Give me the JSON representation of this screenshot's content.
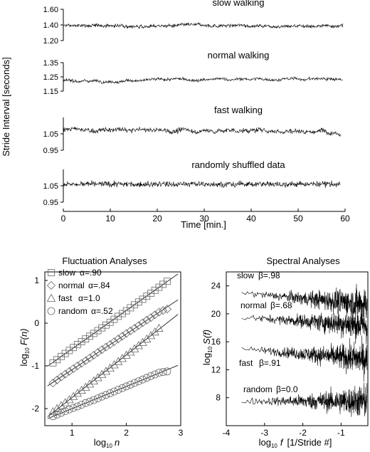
{
  "chart_data": [
    {
      "type": "line",
      "ylabel": "Stride Interval  [seconds]",
      "xlabel": "Time  [min.]",
      "x_ticks": [
        0,
        10,
        20,
        30,
        40,
        50,
        60
      ],
      "xlim": [
        0,
        60
      ],
      "grid": false,
      "panels": [
        {
          "name": "slow walking",
          "mean": 1.39,
          "ylim": [
            1.2,
            1.6
          ],
          "yticks": [
            1.2,
            1.4,
            1.6
          ],
          "ytick_labels": [
            "1.20",
            "1.40",
            "1.60"
          ],
          "x_end": 59.5
        },
        {
          "name": "normal walking",
          "mean": 1.23,
          "ylim": [
            1.15,
            1.35
          ],
          "yticks": [
            1.15,
            1.25,
            1.35
          ],
          "ytick_labels": [
            "1.15",
            "1.25",
            "1.35"
          ],
          "x_end": 59.5
        },
        {
          "name": "fast walking",
          "mean": 1.07,
          "ylim": [
            0.95,
            1.15
          ],
          "yticks": [
            0.95,
            1.05
          ],
          "ytick_labels": [
            "0.95",
            "1.05"
          ],
          "x_end": 59.0
        },
        {
          "name": "randomly shuffled data",
          "mean": 1.06,
          "ylim": [
            0.95,
            1.15
          ],
          "yticks": [
            0.95,
            1.05
          ],
          "ytick_labels": [
            "0.95",
            "1.05"
          ],
          "x_end": 59.0
        }
      ]
    },
    {
      "type": "scatter",
      "title": "Fluctuation Analyses",
      "xlabel_base": "log",
      "xlabel_sub": "10",
      "xlabel_var": "n",
      "ylabel_base": "log",
      "ylabel_sub": "10",
      "ylabel_var": "F(n)",
      "xlim": [
        0.5,
        3.0
      ],
      "ylim": [
        -2.4,
        1.2
      ],
      "x_ticks": [
        1,
        2,
        3
      ],
      "y_ticks": [
        -2,
        -1,
        0,
        1
      ],
      "series": [
        {
          "name": "slow",
          "label": "α=.90",
          "marker": "square",
          "slope": 0.9,
          "x": [
            0.65,
            0.8,
            0.95,
            1.1,
            1.25,
            1.4,
            1.55,
            1.7,
            1.85,
            2.0,
            2.15,
            2.3,
            2.45,
            2.6,
            2.75
          ],
          "y": [
            -0.93,
            -0.78,
            -0.64,
            -0.5,
            -0.37,
            -0.24,
            -0.11,
            0.02,
            0.16,
            0.29,
            0.43,
            0.56,
            0.7,
            0.84,
            0.98
          ]
        },
        {
          "name": "normal",
          "label": "α=.84",
          "marker": "diamond",
          "slope": 0.84,
          "x": [
            0.65,
            0.8,
            0.95,
            1.1,
            1.25,
            1.4,
            1.55,
            1.7,
            1.85,
            2.0,
            2.15,
            2.3,
            2.45,
            2.6,
            2.75
          ],
          "y": [
            -1.4,
            -1.26,
            -1.13,
            -1.0,
            -0.88,
            -0.75,
            -0.62,
            -0.5,
            -0.37,
            -0.24,
            -0.12,
            0.01,
            0.13,
            0.26,
            0.33
          ]
        },
        {
          "name": "fast",
          "label": "α=1.0",
          "marker": "triangle",
          "slope": 1.0,
          "x": [
            0.65,
            0.8,
            0.95,
            1.1,
            1.25,
            1.4,
            1.55,
            1.7,
            1.85,
            2.0,
            2.15,
            2.3,
            2.45,
            2.6
          ],
          "y": [
            -2.07,
            -1.93,
            -1.79,
            -1.64,
            -1.5,
            -1.35,
            -1.2,
            -1.05,
            -0.9,
            -0.75,
            -0.6,
            -0.45,
            -0.29,
            -0.12
          ]
        },
        {
          "name": "random",
          "label": "α=.52",
          "marker": "circle",
          "slope": 0.52,
          "x": [
            0.65,
            0.8,
            0.95,
            1.1,
            1.25,
            1.4,
            1.55,
            1.7,
            1.85,
            2.0,
            2.15,
            2.3,
            2.45,
            2.6,
            2.75
          ],
          "y": [
            -2.18,
            -2.1,
            -2.02,
            -1.95,
            -1.87,
            -1.8,
            -1.72,
            -1.64,
            -1.56,
            -1.48,
            -1.4,
            -1.32,
            -1.24,
            -1.16,
            -1.13
          ]
        }
      ]
    },
    {
      "type": "line",
      "title": "Spectral Analyses",
      "xlabel_base": "log",
      "xlabel_sub": "10",
      "xlabel_var": "f",
      "xlabel_unit": "[1/Stride #]",
      "ylabel_base": "log",
      "ylabel_sub": "10",
      "ylabel_var": "S(f)",
      "xlim": [
        -4.0,
        -0.3
      ],
      "ylim": [
        4,
        26
      ],
      "x_ticks": [
        -4,
        -3,
        -2,
        -1
      ],
      "y_ticks": [
        8,
        12,
        16,
        20,
        24
      ],
      "series": [
        {
          "name": "slow",
          "label": "β=.98",
          "beta": 0.98,
          "level_at_x_start": 23.0
        },
        {
          "name": "normal",
          "label": "β=.68",
          "beta": 0.68,
          "level_at_x_start": 19.5
        },
        {
          "name": "fast",
          "label": "β=.91",
          "beta": 0.91,
          "level_at_x_start": 15.0
        },
        {
          "name": "random",
          "label": "β=0.0",
          "beta": 0.0,
          "level_at_x_start": 7.5
        }
      ]
    }
  ]
}
